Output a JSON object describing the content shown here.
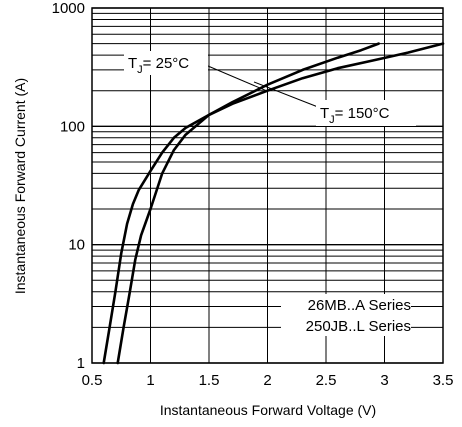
{
  "chart_data": {
    "type": "line",
    "title": "",
    "xlabel": "Instantaneous Forward Voltage (V)",
    "ylabel": "Instantaneous Forward Current (A)",
    "x_scale": "linear",
    "y_scale": "log",
    "xlim": [
      0.5,
      3.5
    ],
    "ylim": [
      1,
      1000
    ],
    "grid": true,
    "xticks": [
      "0.5",
      "1",
      "1.5",
      "2",
      "2.5",
      "3",
      "3.5"
    ],
    "xtick_values": [
      0.5,
      1,
      1.5,
      2,
      2.5,
      3,
      3.5
    ],
    "yticks": [
      "1",
      "10",
      "100",
      "1000"
    ],
    "ytick_values": [
      1,
      10,
      100,
      1000
    ],
    "series": [
      {
        "name": "TJ = 25°C",
        "x": [
          0.6,
          0.65,
          0.7,
          0.75,
          0.8,
          0.85,
          0.9,
          1.0,
          1.1,
          1.2,
          1.3,
          1.5,
          1.7,
          2.0,
          2.3,
          2.6,
          2.8,
          2.95
        ],
        "y": [
          1.0,
          2.0,
          4.0,
          8.5,
          15,
          22,
          29,
          42,
          60,
          80,
          97,
          125,
          160,
          225,
          300,
          380,
          440,
          500
        ]
      },
      {
        "name": "TJ = 150°C",
        "x": [
          0.72,
          0.77,
          0.82,
          0.87,
          0.92,
          1.0,
          1.1,
          1.2,
          1.3,
          1.5,
          1.7,
          2.0,
          2.3,
          2.6,
          2.9,
          3.2,
          3.5
        ],
        "y": [
          1.0,
          2.0,
          3.8,
          7.5,
          12,
          20,
          40,
          63,
          85,
          125,
          155,
          200,
          255,
          310,
          360,
          420,
          500
        ]
      }
    ],
    "annotations": {
      "tj25": {
        "main": "T",
        "sub": "J",
        "rest": "= 25°C"
      },
      "tj150": {
        "main": "T",
        "sub": "J",
        "rest": "= 150°C"
      },
      "series_note_1": "26MB..A Series",
      "series_note_2": "250JB..L Series"
    }
  }
}
